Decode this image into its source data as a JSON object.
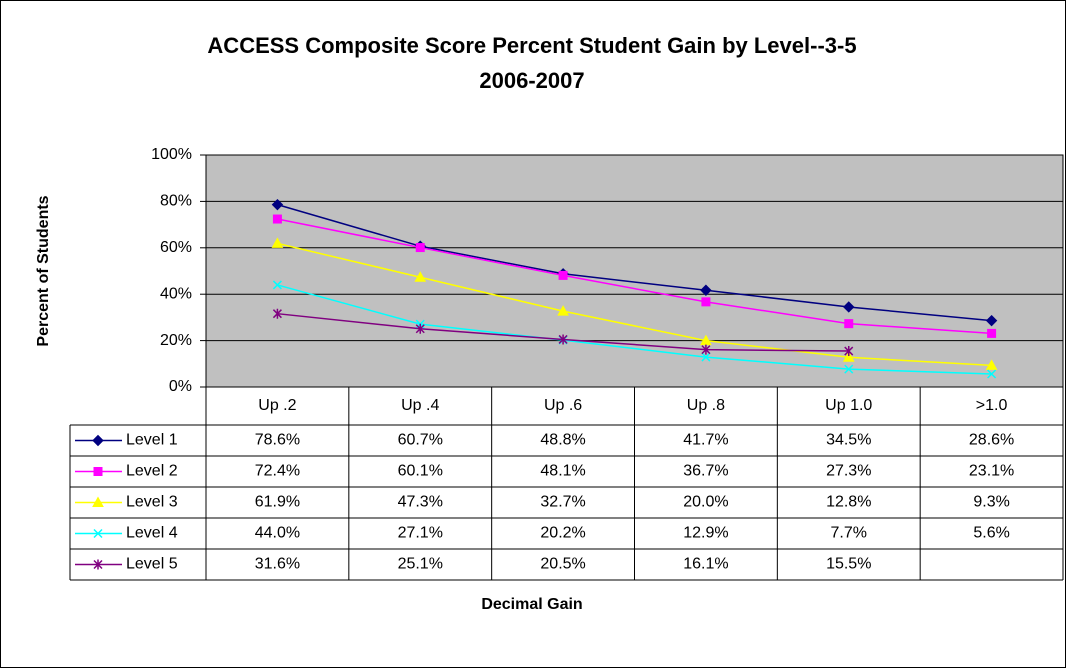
{
  "chart_data": {
    "type": "line",
    "title_lines": [
      "ACCESS Composite Score Percent Student Gain by Level--3-5",
      "2006-2007"
    ],
    "y_label": "Percent of Students",
    "x_label": "Decimal Gain",
    "categories": [
      "Up .2",
      "Up .4",
      "Up .6",
      "Up .8",
      "Up 1.0",
      ">1.0"
    ],
    "ylim": [
      0,
      100
    ],
    "yticks": [
      {
        "value": 0,
        "label": "0%"
      },
      {
        "value": 20,
        "label": "20%"
      },
      {
        "value": 40,
        "label": "40%"
      },
      {
        "value": 60,
        "label": "60%"
      },
      {
        "value": 80,
        "label": "80%"
      },
      {
        "value": 100,
        "label": "100%"
      }
    ],
    "grid": true,
    "plot_background": "#c0c0c0",
    "series": [
      {
        "name": "Level 1",
        "color": "#000080",
        "marker": "diamond",
        "values": [
          78.6,
          60.7,
          48.8,
          41.7,
          34.5,
          28.6
        ],
        "value_labels": [
          "78.6%",
          "60.7%",
          "48.8%",
          "41.7%",
          "34.5%",
          "28.6%"
        ]
      },
      {
        "name": "Level 2",
        "color": "#ff00ff",
        "marker": "square",
        "values": [
          72.4,
          60.1,
          48.1,
          36.7,
          27.3,
          23.1
        ],
        "value_labels": [
          "72.4%",
          "60.1%",
          "48.1%",
          "36.7%",
          "27.3%",
          "23.1%"
        ]
      },
      {
        "name": "Level 3",
        "color": "#ffff00",
        "marker": "triangle",
        "values": [
          61.9,
          47.3,
          32.7,
          20.0,
          12.8,
          9.3
        ],
        "value_labels": [
          "61.9%",
          "47.3%",
          "32.7%",
          "20.0%",
          "12.8%",
          "9.3%"
        ]
      },
      {
        "name": "Level 4",
        "color": "#00ffff",
        "marker": "x",
        "values": [
          44.0,
          27.1,
          20.2,
          12.9,
          7.7,
          5.6
        ],
        "value_labels": [
          "44.0%",
          "27.1%",
          "20.2%",
          "12.9%",
          "7.7%",
          "5.6%"
        ]
      },
      {
        "name": "Level 5",
        "color": "#800080",
        "marker": "star",
        "values": [
          31.6,
          25.1,
          20.5,
          16.1,
          15.5,
          null
        ],
        "value_labels": [
          "31.6%",
          "25.1%",
          "20.5%",
          "16.1%",
          "15.5%",
          null
        ]
      }
    ]
  }
}
